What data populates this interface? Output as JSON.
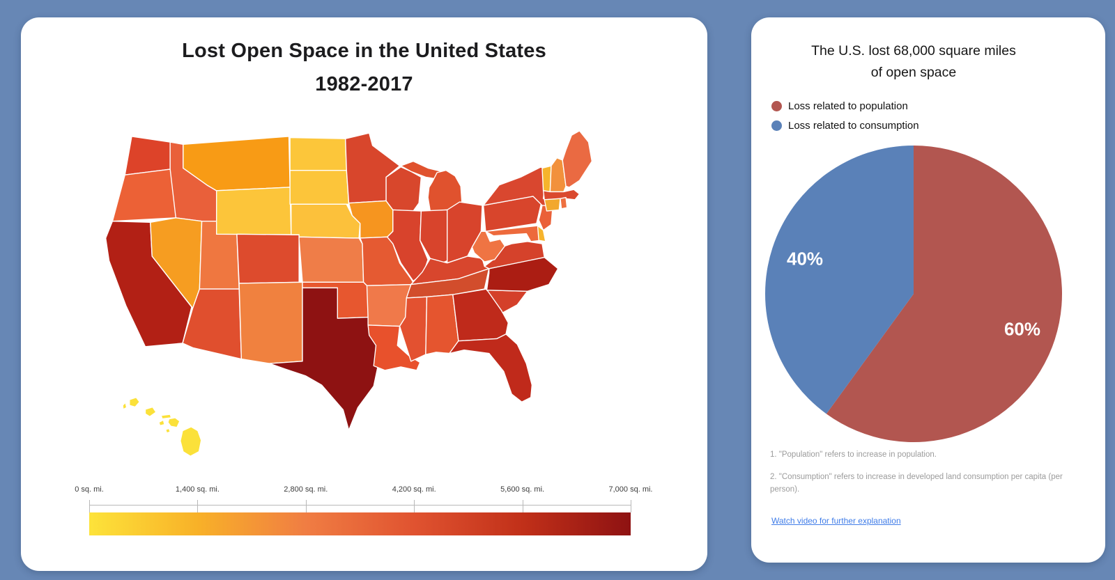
{
  "background_color": "#6787b5",
  "left_panel": {
    "title_line1": "Lost Open Space in the United States",
    "title_line2": "1982-2017"
  },
  "right_panel": {
    "title_line1": "The U.S. lost 68,000 square miles",
    "title_line2": "of open space",
    "footnotes": [
      "1. \"Population\" refers to increase in population.",
      "2. \"Consumption\" refers to increase in developed land consumption per capita (per person)."
    ],
    "link_text": "Watch video for further explanation"
  },
  "chart_data": [
    {
      "type": "choropleth_map",
      "title": "Lost Open Space in the United States 1982-2017",
      "unit": "sq. mi.",
      "scale": {
        "min": 0,
        "max": 7000,
        "ticks": [
          0,
          1400,
          2800,
          4200,
          5600,
          7000
        ],
        "tick_labels": [
          "0 sq. mi.",
          "1,400 sq. mi.",
          "2,800 sq. mi.",
          "4,200 sq. mi.",
          "5,600 sq. mi.",
          "7,000 sq. mi."
        ],
        "colors": [
          "#fde33a",
          "#f8b128",
          "#f07d43",
          "#e05330",
          "#c13019",
          "#8e1212"
        ]
      },
      "states": {
        "WA": {
          "name": "Washington",
          "color": "#dd4329",
          "value_est_sq_mi": 4400
        },
        "OR": {
          "name": "Oregon",
          "color": "#ec6136",
          "value_est_sq_mi": 3200
        },
        "CA": {
          "name": "California",
          "color": "#b22015",
          "value_est_sq_mi": 6100
        },
        "ID": {
          "name": "Idaho",
          "color": "#e9603a",
          "value_est_sq_mi": 3500
        },
        "NV": {
          "name": "Nevada",
          "color": "#f69d21",
          "value_est_sq_mi": 1800
        },
        "MT": {
          "name": "Montana",
          "color": "#f89b15",
          "value_est_sq_mi": 1900
        },
        "WY": {
          "name": "Wyoming",
          "color": "#fcc53a",
          "value_est_sq_mi": 700
        },
        "UT": {
          "name": "Utah",
          "color": "#ef7740",
          "value_est_sq_mi": 2900
        },
        "CO": {
          "name": "Colorado",
          "color": "#dd4b2d",
          "value_est_sq_mi": 4100
        },
        "AZ": {
          "name": "Arizona",
          "color": "#e04f2e",
          "value_est_sq_mi": 4000
        },
        "NM": {
          "name": "New Mexico",
          "color": "#f0813f",
          "value_est_sq_mi": 2700
        },
        "ND": {
          "name": "North Dakota",
          "color": "#fcc63a",
          "value_est_sq_mi": 700
        },
        "SD": {
          "name": "South Dakota",
          "color": "#fcc53a",
          "value_est_sq_mi": 700
        },
        "NE": {
          "name": "Nebraska",
          "color": "#fcc13b",
          "value_est_sq_mi": 800
        },
        "KS": {
          "name": "Kansas",
          "color": "#ef7d48",
          "value_est_sq_mi": 2800
        },
        "OK": {
          "name": "Oklahoma",
          "color": "#e7572f",
          "value_est_sq_mi": 3800
        },
        "TX": {
          "name": "Texas",
          "color": "#8e1212",
          "value_est_sq_mi": 7000
        },
        "MN": {
          "name": "Minnesota",
          "color": "#d8462c",
          "value_est_sq_mi": 4400
        },
        "IA": {
          "name": "Iowa",
          "color": "#f6951f",
          "value_est_sq_mi": 2000
        },
        "MO": {
          "name": "Missouri",
          "color": "#e55a32",
          "value_est_sq_mi": 3700
        },
        "AR": {
          "name": "Arkansas",
          "color": "#f0794a",
          "value_est_sq_mi": 2900
        },
        "LA": {
          "name": "Louisiana",
          "color": "#e8512c",
          "value_est_sq_mi": 3900
        },
        "WI": {
          "name": "Wisconsin",
          "color": "#d8472c",
          "value_est_sq_mi": 4400
        },
        "IL": {
          "name": "Illinois",
          "color": "#d8432c",
          "value_est_sq_mi": 4500
        },
        "MI": {
          "name": "Michigan",
          "color": "#e0522e",
          "value_est_sq_mi": 4000
        },
        "IN": {
          "name": "Indiana",
          "color": "#d8442c",
          "value_est_sq_mi": 4400
        },
        "OH": {
          "name": "Ohio",
          "color": "#d8442c",
          "value_est_sq_mi": 4400
        },
        "KY": {
          "name": "Kentucky",
          "color": "#d8462d",
          "value_est_sq_mi": 4400
        },
        "TN": {
          "name": "Tennessee",
          "color": "#d24d2c",
          "value_est_sq_mi": 4600
        },
        "MS": {
          "name": "Mississippi",
          "color": "#e35130",
          "value_est_sq_mi": 3900
        },
        "AL": {
          "name": "Alabama",
          "color": "#e5552f",
          "value_est_sq_mi": 3800
        },
        "GA": {
          "name": "Georgia",
          "color": "#bf2a1b",
          "value_est_sq_mi": 5600
        },
        "FL": {
          "name": "Florida",
          "color": "#c02a1b",
          "value_est_sq_mi": 5600
        },
        "SC": {
          "name": "South Carolina",
          "color": "#d4402a",
          "value_est_sq_mi": 4600
        },
        "NC": {
          "name": "North Carolina",
          "color": "#ab1d13",
          "value_est_sq_mi": 6300
        },
        "VA": {
          "name": "Virginia",
          "color": "#d5422b",
          "value_est_sq_mi": 4500
        },
        "WV": {
          "name": "West Virginia",
          "color": "#ef7443",
          "value_est_sq_mi": 2900
        },
        "MD": {
          "name": "Maryland",
          "color": "#ed6a3c",
          "value_est_sq_mi": 3100
        },
        "DE": {
          "name": "Delaware",
          "color": "#f6b42c",
          "value_est_sq_mi": 1200
        },
        "NJ": {
          "name": "New Jersey",
          "color": "#ea6038",
          "value_est_sq_mi": 3400
        },
        "PA": {
          "name": "Pennsylvania",
          "color": "#d8452c",
          "value_est_sq_mi": 4400
        },
        "NY": {
          "name": "New York",
          "color": "#d9472f",
          "value_est_sq_mi": 4400
        },
        "CT": {
          "name": "Connecticut",
          "color": "#f2a82e",
          "value_est_sq_mi": 1600
        },
        "RI": {
          "name": "Rhode Island",
          "color": "#ee7040",
          "value_est_sq_mi": 3000
        },
        "MA": {
          "name": "Massachusetts",
          "color": "#da492e",
          "value_est_sq_mi": 4300
        },
        "VT": {
          "name": "Vermont",
          "color": "#f6b42c",
          "value_est_sq_mi": 1200
        },
        "NH": {
          "name": "New Hampshire",
          "color": "#f2913c",
          "value_est_sq_mi": 2300
        },
        "ME": {
          "name": "Maine",
          "color": "#ea6a42",
          "value_est_sq_mi": 3200
        },
        "HI": {
          "name": "Hawaii",
          "color": "#fbe13a",
          "value_est_sq_mi": 150
        }
      }
    },
    {
      "type": "pie",
      "title": "The U.S. lost 68,000 square miles of open space",
      "total_sq_mi": 68000,
      "start_angle_deg": 0,
      "direction": "clockwise",
      "slices": [
        {
          "label": "Loss related to population",
          "value": 60,
          "color": "#b25650"
        },
        {
          "label": "Loss related to consumption",
          "value": 40,
          "color": "#5a81b8"
        }
      ],
      "legend_position": "top-left"
    }
  ]
}
